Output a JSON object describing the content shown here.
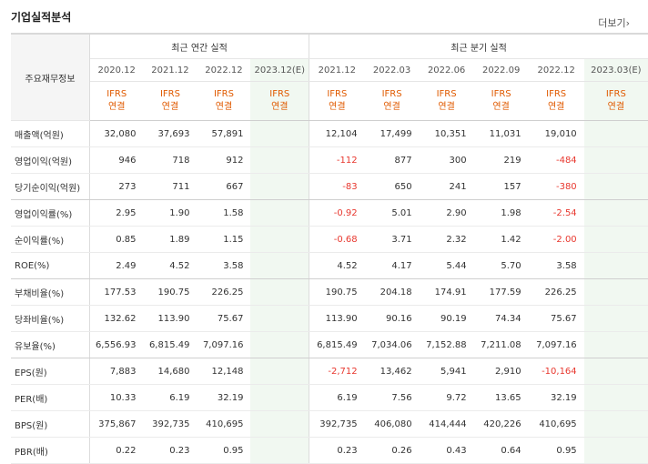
{
  "title": "기업실적분석",
  "more_label": "더보기",
  "more_arrow": "›",
  "row_header_label": "주요재무정보",
  "annual_label": "최근 연간 실적",
  "quarter_label": "최근 분기 실적",
  "periods": [
    "2020.12",
    "2021.12",
    "2022.12",
    "2023.12(E)",
    "2021.12",
    "2022.03",
    "2022.06",
    "2022.09",
    "2022.12",
    "2023.03(E)"
  ],
  "ifrs_line1": "IFRS",
  "ifrs_line2": "연결",
  "rows": [
    {
      "label": "매출액(억원)",
      "values": [
        "32,080",
        "37,693",
        "57,891",
        "",
        "12,104",
        "17,499",
        "10,351",
        "11,031",
        "19,010",
        ""
      ]
    },
    {
      "label": "영업이익(억원)",
      "values": [
        "946",
        "718",
        "912",
        "",
        "-112",
        "877",
        "300",
        "219",
        "-484",
        ""
      ]
    },
    {
      "label": "당기순이익(억원)",
      "values": [
        "273",
        "711",
        "667",
        "",
        "-83",
        "650",
        "241",
        "157",
        "-380",
        ""
      ]
    },
    {
      "label": "영업이익률(%)",
      "values": [
        "2.95",
        "1.90",
        "1.58",
        "",
        "-0.92",
        "5.01",
        "2.90",
        "1.98",
        "-2.54",
        ""
      ]
    },
    {
      "label": "순이익률(%)",
      "values": [
        "0.85",
        "1.89",
        "1.15",
        "",
        "-0.68",
        "3.71",
        "2.32",
        "1.42",
        "-2.00",
        ""
      ]
    },
    {
      "label": "ROE(%)",
      "values": [
        "2.49",
        "4.52",
        "3.58",
        "",
        "4.52",
        "4.17",
        "5.44",
        "5.70",
        "3.58",
        ""
      ]
    },
    {
      "label": "부채비율(%)",
      "values": [
        "177.53",
        "190.75",
        "226.25",
        "",
        "190.75",
        "204.18",
        "174.91",
        "177.59",
        "226.25",
        ""
      ]
    },
    {
      "label": "당좌비율(%)",
      "values": [
        "132.62",
        "113.90",
        "75.67",
        "",
        "113.90",
        "90.16",
        "90.19",
        "74.34",
        "75.67",
        ""
      ]
    },
    {
      "label": "유보율(%)",
      "values": [
        "6,556.93",
        "6,815.49",
        "7,097.16",
        "",
        "6,815.49",
        "7,034.06",
        "7,152.88",
        "7,211.08",
        "7,097.16",
        ""
      ]
    },
    {
      "label": "EPS(원)",
      "values": [
        "7,883",
        "14,680",
        "12,148",
        "",
        "-2,712",
        "13,462",
        "5,941",
        "2,910",
        "-10,164",
        ""
      ]
    },
    {
      "label": "PER(배)",
      "values": [
        "10.33",
        "6.19",
        "32.19",
        "",
        "6.19",
        "7.56",
        "9.72",
        "13.65",
        "32.19",
        ""
      ]
    },
    {
      "label": "BPS(원)",
      "values": [
        "375,867",
        "392,735",
        "410,695",
        "",
        "392,735",
        "406,080",
        "414,444",
        "420,226",
        "410,695",
        ""
      ]
    },
    {
      "label": "PBR(배)",
      "values": [
        "0.22",
        "0.23",
        "0.95",
        "",
        "0.23",
        "0.26",
        "0.43",
        "0.64",
        "0.95",
        ""
      ]
    }
  ]
}
